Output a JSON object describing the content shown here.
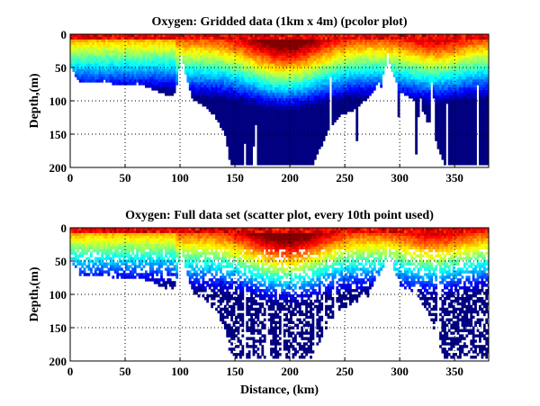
{
  "chart_data": [
    {
      "type": "heatmap",
      "title": "Oxygen: Gridded data (1km x 4m) (pcolor plot)",
      "xlabel": "",
      "ylabel": "Depth,(m)",
      "xlim": [
        0,
        381
      ],
      "ylim": [
        200,
        0
      ],
      "xticks": [
        "0",
        "50",
        "100",
        "150",
        "200",
        "250",
        "300",
        "350"
      ],
      "yticks": [
        "0",
        "50",
        "100",
        "150",
        "200"
      ],
      "grid": true,
      "colormap": "jet",
      "bottom_profile_km_m": [
        [
          0,
          48
        ],
        [
          5,
          65
        ],
        [
          10,
          72
        ],
        [
          20,
          72
        ],
        [
          30,
          68
        ],
        [
          40,
          74
        ],
        [
          50,
          75
        ],
        [
          60,
          72
        ],
        [
          70,
          78
        ],
        [
          80,
          85
        ],
        [
          90,
          92
        ],
        [
          95,
          85
        ],
        [
          100,
          30
        ],
        [
          105,
          65
        ],
        [
          110,
          95
        ],
        [
          120,
          105
        ],
        [
          130,
          120
        ],
        [
          140,
          150
        ],
        [
          145,
          195
        ],
        [
          155,
          195
        ],
        [
          170,
          195
        ],
        [
          180,
          195
        ],
        [
          190,
          195
        ],
        [
          200,
          195
        ],
        [
          210,
          195
        ],
        [
          220,
          195
        ],
        [
          225,
          175
        ],
        [
          235,
          140
        ],
        [
          245,
          120
        ],
        [
          260,
          110
        ],
        [
          275,
          85
        ],
        [
          285,
          55
        ],
        [
          288,
          28
        ],
        [
          292,
          55
        ],
        [
          300,
          85
        ],
        [
          315,
          100
        ],
        [
          325,
          125
        ],
        [
          335,
          175
        ],
        [
          340,
          195
        ],
        [
          350,
          195
        ],
        [
          365,
          195
        ],
        [
          375,
          195
        ],
        [
          381,
          195
        ]
      ]
    },
    {
      "type": "scatter",
      "title": "Oxygen: Full data set (scatter plot, every 10th point used)",
      "xlabel": "Distance, (km)",
      "ylabel": "Depth,(m)",
      "xlim": [
        0,
        381
      ],
      "ylim": [
        200,
        0
      ],
      "xticks": [
        "0",
        "50",
        "100",
        "150",
        "200",
        "250",
        "300",
        "350"
      ],
      "yticks": [
        "0",
        "50",
        "100",
        "150",
        "200"
      ],
      "grid": true,
      "colormap": "jet",
      "bottom_profile_km_m": [
        [
          0,
          48
        ],
        [
          5,
          65
        ],
        [
          10,
          72
        ],
        [
          20,
          72
        ],
        [
          30,
          68
        ],
        [
          40,
          74
        ],
        [
          50,
          75
        ],
        [
          60,
          72
        ],
        [
          70,
          78
        ],
        [
          80,
          85
        ],
        [
          90,
          92
        ],
        [
          95,
          85
        ],
        [
          100,
          30
        ],
        [
          105,
          65
        ],
        [
          110,
          95
        ],
        [
          120,
          105
        ],
        [
          130,
          120
        ],
        [
          140,
          150
        ],
        [
          145,
          195
        ],
        [
          155,
          195
        ],
        [
          170,
          195
        ],
        [
          180,
          195
        ],
        [
          190,
          195
        ],
        [
          200,
          195
        ],
        [
          210,
          195
        ],
        [
          220,
          195
        ],
        [
          225,
          175
        ],
        [
          235,
          140
        ],
        [
          245,
          120
        ],
        [
          260,
          110
        ],
        [
          275,
          85
        ],
        [
          285,
          55
        ],
        [
          288,
          28
        ],
        [
          292,
          55
        ],
        [
          300,
          85
        ],
        [
          315,
          100
        ],
        [
          325,
          125
        ],
        [
          335,
          175
        ],
        [
          340,
          195
        ],
        [
          350,
          195
        ],
        [
          365,
          195
        ],
        [
          375,
          195
        ],
        [
          381,
          195
        ]
      ]
    }
  ]
}
